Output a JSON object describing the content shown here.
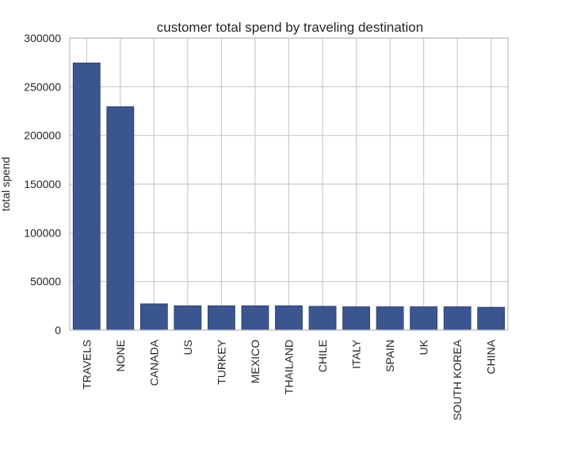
{
  "chart_data": {
    "type": "bar",
    "title": "customer total spend by traveling destination",
    "xlabel": "",
    "ylabel": "total spend",
    "categories": [
      "TRAVELS",
      "NONE",
      "CANADA",
      "US",
      "TURKEY",
      "MEXICO",
      "THAILAND",
      "CHILE",
      "ITALY",
      "SPAIN",
      "UK",
      "SOUTH KOREA",
      "CHINA"
    ],
    "values": [
      274500,
      229500,
      27000,
      25000,
      25000,
      25000,
      25000,
      24500,
      24000,
      24000,
      24000,
      24000,
      23500
    ],
    "ylim": [
      0,
      300000
    ],
    "yticks": [
      "0",
      "50000",
      "100000",
      "150000",
      "200000",
      "250000",
      "300000"
    ],
    "grid": true,
    "legend": "none"
  },
  "colors": {
    "bar": "#3b5591",
    "bar_edge": "#2c3e66",
    "grid": "#cbcbcb",
    "axes_edge": "#bcbcbc",
    "text": "#262626"
  }
}
